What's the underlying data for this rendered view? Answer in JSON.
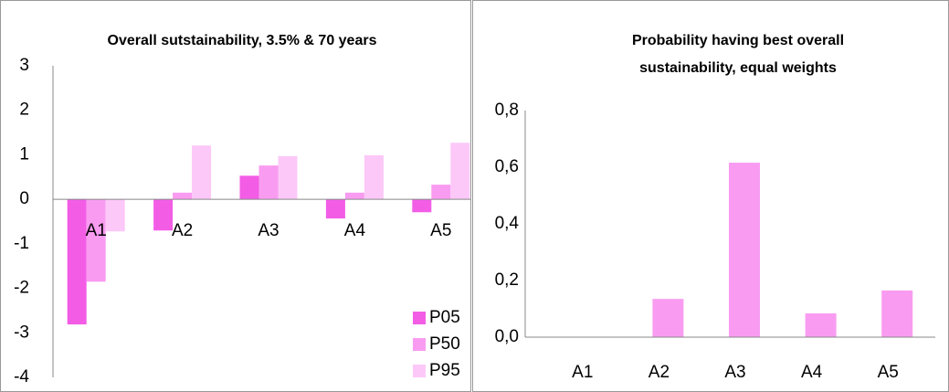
{
  "chart_data": [
    {
      "type": "bar",
      "title": "Overall sutstainability, 3.5% & 70 years",
      "categories": [
        "A1",
        "A2",
        "A3",
        "A4",
        "A5"
      ],
      "series": [
        {
          "name": "P05",
          "color": "#f35de6",
          "values": [
            -2.81,
            -0.7,
            0.53,
            -0.43,
            -0.29
          ]
        },
        {
          "name": "P50",
          "color": "#f99cf1",
          "values": [
            -1.85,
            0.15,
            0.76,
            0.15,
            0.33
          ]
        },
        {
          "name": "P95",
          "color": "#fcc8f8",
          "values": [
            -0.72,
            1.21,
            0.97,
            0.99,
            1.27
          ]
        }
      ],
      "ylim": [
        -4,
        3
      ],
      "yticks": [
        3,
        2,
        1,
        0,
        -1,
        -2,
        -3,
        -4
      ],
      "grid": false,
      "legend": "bottom-right"
    },
    {
      "type": "bar",
      "title": [
        "Probability having best overall",
        "sustainability, equal weights"
      ],
      "categories": [
        "A1",
        "A2",
        "A3",
        "A4",
        "A5"
      ],
      "values": [
        0,
        0.135,
        0.616,
        0.084,
        0.165
      ],
      "color": "#f99cf1",
      "ylim": [
        0,
        0.8
      ],
      "yticks": [
        {
          "value": 0.8,
          "label": "0,8"
        },
        {
          "value": 0.6,
          "label": "0,6"
        },
        {
          "value": 0.4,
          "label": "0,4"
        },
        {
          "value": 0.2,
          "label": "0,2"
        },
        {
          "value": 0,
          "label": "0,0"
        }
      ],
      "grid": false
    }
  ]
}
